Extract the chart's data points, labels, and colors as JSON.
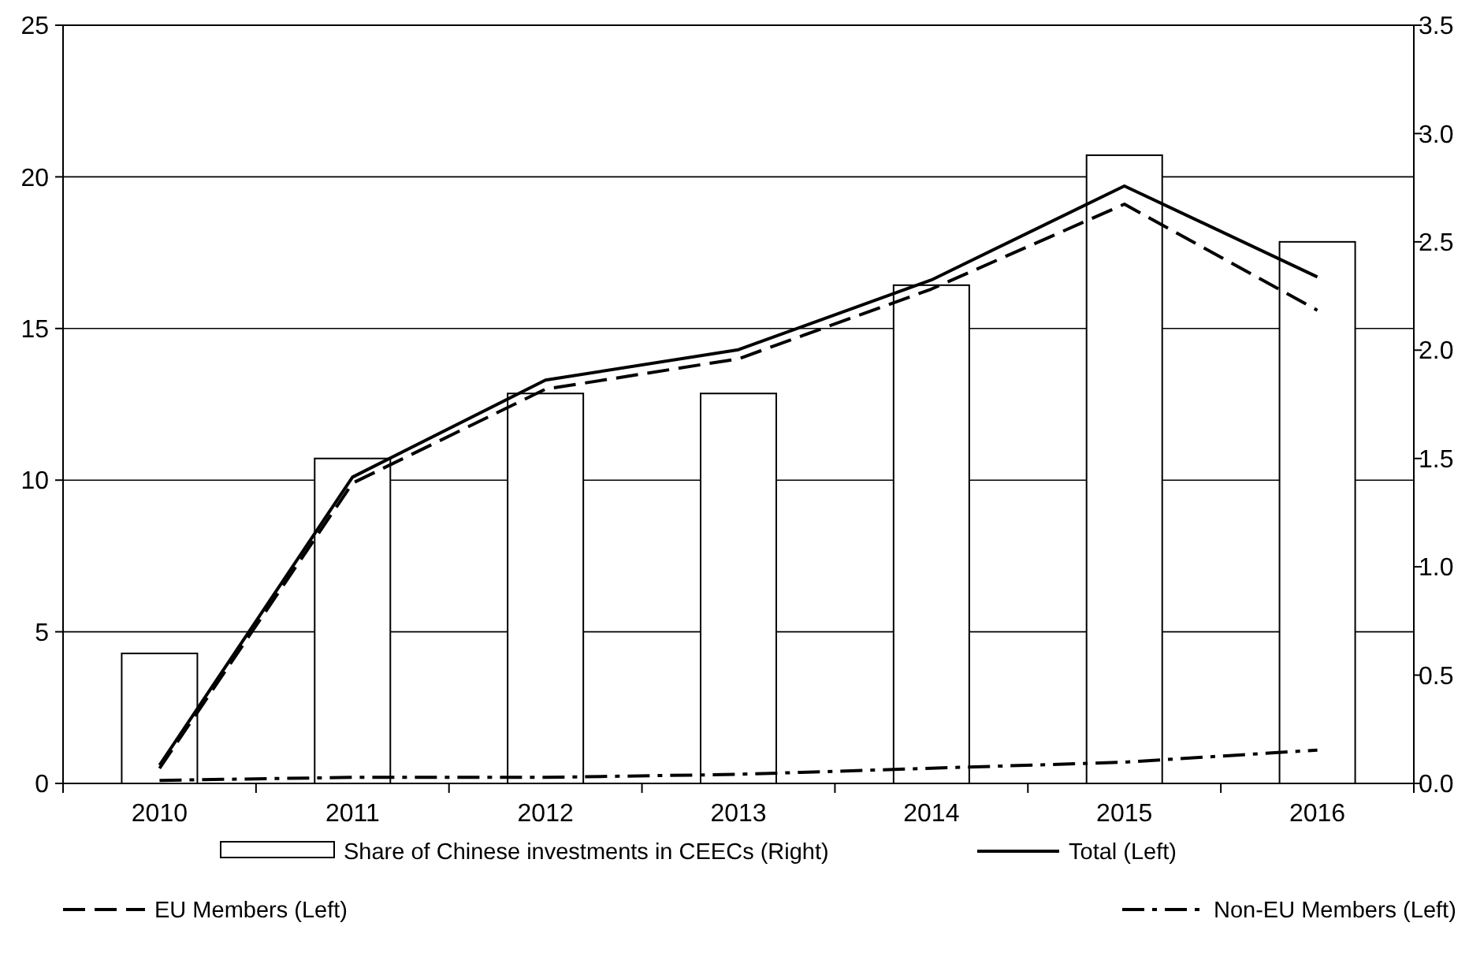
{
  "chart_data": {
    "type": "line",
    "categories": [
      "2010",
      "2011",
      "2012",
      "2013",
      "2014",
      "2015",
      "2016"
    ],
    "series": [
      {
        "name": "Share of Chinese investments in CEECs (Right)",
        "type": "bar",
        "axis": "y2",
        "color": "#ffffff",
        "values": [
          0.6,
          1.5,
          1.8,
          1.8,
          2.3,
          2.9,
          2.5
        ]
      },
      {
        "name": "Total (Left)",
        "color": "#000000",
        "line_style": "solid",
        "values": [
          0.6,
          10.1,
          13.3,
          14.3,
          16.6,
          19.7,
          16.7
        ]
      },
      {
        "name": "EU Members (Left)",
        "color": "#000000",
        "line_style": "dashed",
        "values": [
          0.5,
          9.9,
          13.0,
          14.0,
          16.3,
          19.1,
          15.6
        ]
      },
      {
        "name": "Non-EU Members (Left)",
        "color": "#000000",
        "line_style": "dashdot",
        "values": [
          0.1,
          0.2,
          0.2,
          0.3,
          0.5,
          0.7,
          1.1
        ]
      }
    ],
    "ylim": [
      0,
      25
    ],
    "yticks": [
      0,
      5,
      10,
      15,
      20,
      25
    ],
    "y2lim": [
      0,
      3.5
    ],
    "y2ticks": [
      {
        "value": 0,
        "label": "0.0"
      },
      {
        "value": 0.5,
        "label": "0.5"
      },
      {
        "value": 1,
        "label": "1.0"
      },
      {
        "value": 1.5,
        "label": "1.5"
      },
      {
        "value": 2,
        "label": "2.0"
      },
      {
        "value": 2.5,
        "label": "2.5"
      },
      {
        "value": 3,
        "label": "3.0"
      },
      {
        "value": 3.5,
        "label": "3.5"
      }
    ],
    "grid": "y",
    "legend": "bottom"
  }
}
